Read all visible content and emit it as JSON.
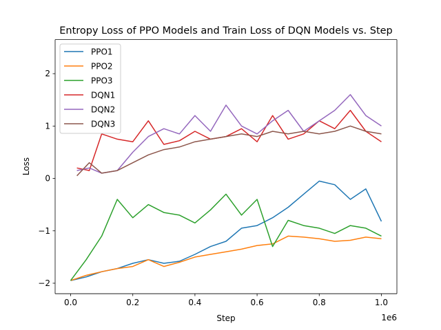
{
  "chart_data": {
    "type": "line",
    "title": "Entropy Loss of PPO Models and Train Loss of DQN Models vs. Step",
    "xlabel": "Step",
    "ylabel": "Loss",
    "x_offset_label": "1e6",
    "xlim": [
      -50000,
      1050000
    ],
    "ylim": [
      -2.2,
      2.65
    ],
    "x_ticks": [
      0,
      200000,
      400000,
      600000,
      800000,
      1000000
    ],
    "x_tick_labels": [
      "0.0",
      "0.2",
      "0.4",
      "0.6",
      "0.8",
      "1.0"
    ],
    "y_ticks": [
      -2,
      -1,
      0,
      1,
      2
    ],
    "y_tick_labels": [
      "−2",
      "−1",
      "0",
      "1",
      "2"
    ],
    "grid": false,
    "legend_position": "upper left",
    "series": [
      {
        "name": "PPO1",
        "color": "#1f77b4",
        "x": [
          0,
          50000,
          100000,
          150000,
          200000,
          250000,
          300000,
          350000,
          400000,
          450000,
          500000,
          550000,
          600000,
          650000,
          700000,
          750000,
          800000,
          850000,
          900000,
          950000,
          1000000
        ],
        "y": [
          -1.95,
          -1.88,
          -1.78,
          -1.72,
          -1.62,
          -1.55,
          -1.62,
          -1.58,
          -1.45,
          -1.3,
          -1.2,
          -0.95,
          -0.9,
          -0.75,
          -0.55,
          -0.3,
          -0.05,
          -0.12,
          -0.4,
          -0.2,
          -0.82
        ]
      },
      {
        "name": "PPO2",
        "color": "#ff7f0e",
        "x": [
          0,
          50000,
          100000,
          150000,
          200000,
          250000,
          300000,
          350000,
          400000,
          450000,
          500000,
          550000,
          600000,
          650000,
          700000,
          750000,
          800000,
          850000,
          900000,
          950000,
          1000000
        ],
        "y": [
          -1.95,
          -1.85,
          -1.78,
          -1.72,
          -1.68,
          -1.55,
          -1.68,
          -1.6,
          -1.5,
          -1.45,
          -1.4,
          -1.35,
          -1.28,
          -1.25,
          -1.1,
          -1.12,
          -1.15,
          -1.2,
          -1.18,
          -1.12,
          -1.15
        ]
      },
      {
        "name": "PPO3",
        "color": "#2ca02c",
        "x": [
          0,
          50000,
          100000,
          150000,
          200000,
          250000,
          300000,
          350000,
          400000,
          450000,
          500000,
          550000,
          600000,
          650000,
          700000,
          750000,
          800000,
          850000,
          900000,
          950000,
          1000000
        ],
        "y": [
          -1.95,
          -1.55,
          -1.1,
          -0.4,
          -0.75,
          -0.5,
          -0.65,
          -0.7,
          -0.85,
          -0.6,
          -0.3,
          -0.7,
          -0.4,
          -1.3,
          -0.8,
          -0.9,
          -0.95,
          -1.05,
          -0.9,
          -0.95,
          -1.1
        ]
      },
      {
        "name": "DQN1",
        "color": "#d62728",
        "x": [
          20000,
          60000,
          100000,
          150000,
          200000,
          250000,
          300000,
          350000,
          400000,
          450000,
          500000,
          550000,
          600000,
          650000,
          700000,
          750000,
          800000,
          850000,
          900000,
          950000,
          1000000
        ],
        "y": [
          0.2,
          0.15,
          0.85,
          0.75,
          0.7,
          1.1,
          0.65,
          0.72,
          0.9,
          0.75,
          0.8,
          0.95,
          0.7,
          1.2,
          0.75,
          0.85,
          1.1,
          0.95,
          1.3,
          0.9,
          0.7
        ]
      },
      {
        "name": "DQN2",
        "color": "#9467bd",
        "x": [
          20000,
          60000,
          100000,
          150000,
          200000,
          250000,
          300000,
          350000,
          400000,
          450000,
          500000,
          550000,
          600000,
          650000,
          700000,
          750000,
          800000,
          850000,
          900000,
          950000,
          1000000
        ],
        "y": [
          0.15,
          0.2,
          0.1,
          0.15,
          0.5,
          0.8,
          0.95,
          0.85,
          1.2,
          0.9,
          1.4,
          1.0,
          0.85,
          1.1,
          1.3,
          0.9,
          1.1,
          1.3,
          1.6,
          1.2,
          1.0
        ]
      },
      {
        "name": "DQN3",
        "color": "#8c564b",
        "x": [
          20000,
          60000,
          100000,
          150000,
          200000,
          250000,
          300000,
          350000,
          400000,
          450000,
          500000,
          550000,
          600000,
          650000,
          700000,
          750000,
          800000,
          850000,
          900000,
          950000,
          1000000
        ],
        "y": [
          0.05,
          0.3,
          0.1,
          0.15,
          0.3,
          0.45,
          0.55,
          0.6,
          0.7,
          0.75,
          0.8,
          0.85,
          0.8,
          0.9,
          0.85,
          0.9,
          0.85,
          0.9,
          1.0,
          0.9,
          0.85
        ]
      }
    ]
  }
}
